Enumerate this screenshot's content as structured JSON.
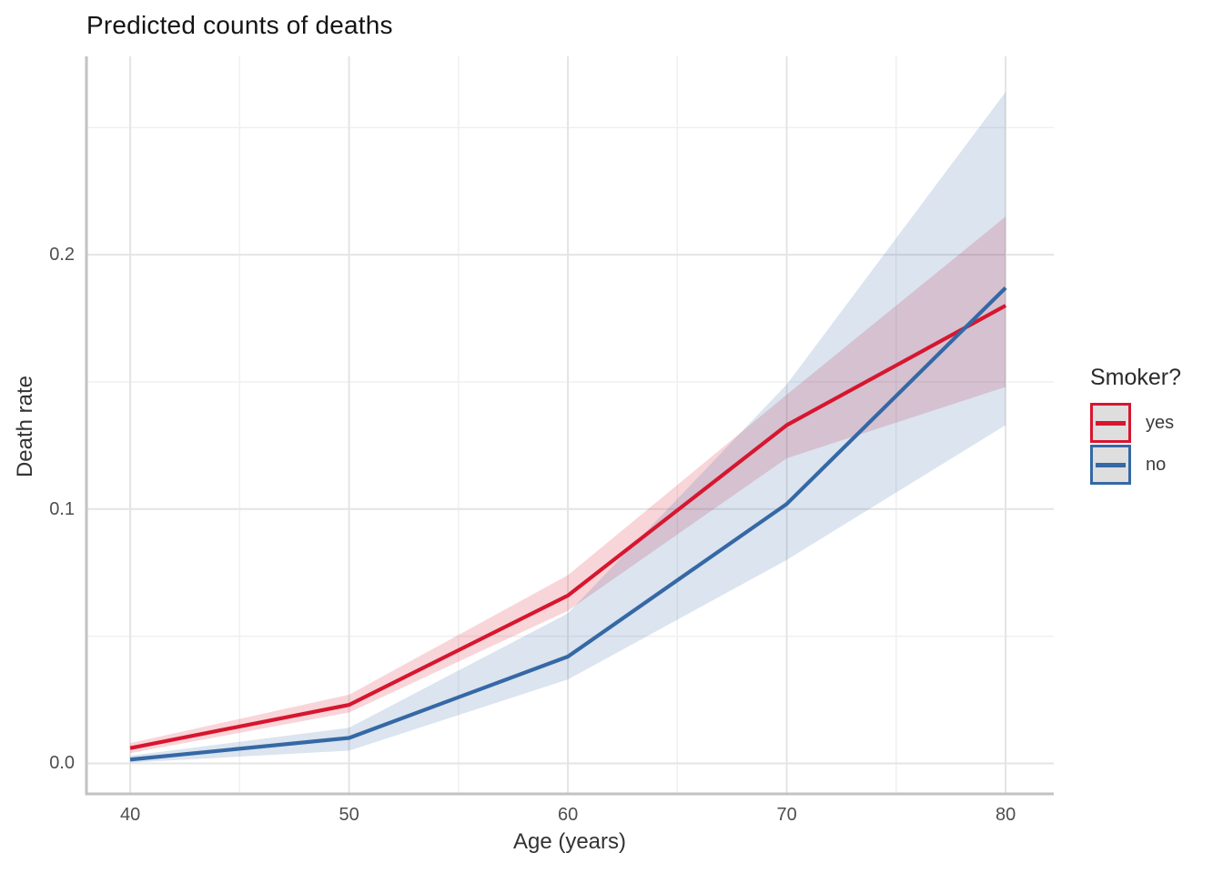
{
  "chart_data": {
    "type": "line",
    "title": "Predicted counts of deaths",
    "xlabel": "Age (years)",
    "ylabel": "Death rate",
    "legend_title": "Smoker?",
    "legend_position": "right",
    "grid": true,
    "x": [
      40,
      50,
      60,
      70,
      80
    ],
    "series": [
      {
        "name": "yes",
        "color": "#D7162F",
        "values": [
          0.006,
          0.023,
          0.066,
          0.133,
          0.18
        ],
        "lower": [
          0.004,
          0.02,
          0.06,
          0.12,
          0.148
        ],
        "upper": [
          0.008,
          0.027,
          0.074,
          0.145,
          0.215
        ]
      },
      {
        "name": "no",
        "color": "#3568A5",
        "values": [
          0.0015,
          0.01,
          0.042,
          0.102,
          0.187
        ],
        "lower": [
          0.0003,
          0.005,
          0.033,
          0.08,
          0.133
        ],
        "upper": [
          0.003,
          0.014,
          0.059,
          0.149,
          0.264
        ]
      }
    ],
    "ribbon_opacity": 0.18,
    "x_ticks": {
      "values": [
        40,
        50,
        60,
        70,
        80
      ],
      "labels": [
        "40",
        "50",
        "60",
        "70",
        "80"
      ],
      "minor": [
        45,
        55,
        65,
        75
      ]
    },
    "y_ticks": {
      "values": [
        0,
        0.1,
        0.2
      ],
      "labels": [
        "0.0",
        "0.1",
        "0.2"
      ],
      "minor": [
        0.05,
        0.15,
        0.25
      ]
    },
    "xlim": [
      38,
      82.2
    ],
    "ylim": [
      -0.012,
      0.278
    ]
  }
}
